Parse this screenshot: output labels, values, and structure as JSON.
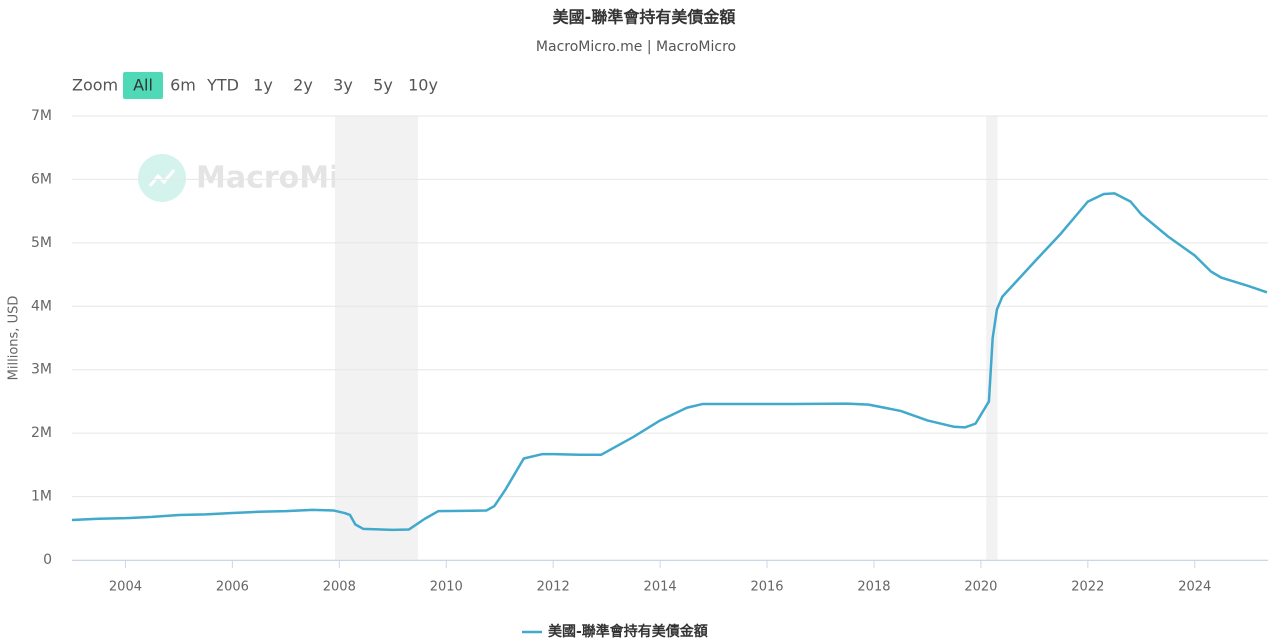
{
  "chart_data": {
    "type": "line",
    "title": "美國-聯準會持有美債金額",
    "subtitle": "MacroMicro.me | MacroMicro",
    "watermark": "MacroMicro",
    "range_selector": {
      "label": "Zoom",
      "buttons": [
        "All",
        "6m",
        "YTD",
        "1y",
        "2y",
        "3y",
        "5y",
        "10y"
      ]
    },
    "y_label": "Millions, USD",
    "x": [
      2003.0,
      2003.5,
      2004.0,
      2004.5,
      2005.0,
      2005.5,
      2006.0,
      2006.5,
      2007.0,
      2007.5,
      2007.9,
      2008.1,
      2008.2,
      2008.3,
      2008.45,
      2009.0,
      2009.3,
      2009.6,
      2009.85,
      2010.5,
      2010.75,
      2010.9,
      2011.1,
      2011.45,
      2011.8,
      2012.0,
      2012.5,
      2012.9,
      2013.5,
      2014.0,
      2014.5,
      2014.8,
      2015.5,
      2016.5,
      2017.5,
      2017.9,
      2018.5,
      2019.0,
      2019.5,
      2019.7,
      2019.9,
      2020.15,
      2020.22,
      2020.3,
      2020.4,
      2021.0,
      2021.5,
      2022.0,
      2022.3,
      2022.5,
      2022.8,
      2023.0,
      2023.5,
      2024.0,
      2024.3,
      2024.5,
      2025.0,
      2025.35
    ],
    "series": [
      {
        "name": "美國-聯準會持有美債金額",
        "color": "#40a9cc",
        "values": [
          630000,
          650000,
          660000,
          680000,
          710000,
          720000,
          740000,
          760000,
          770000,
          790000,
          780000,
          740000,
          710000,
          560000,
          490000,
          475000,
          480000,
          650000,
          770000,
          777000,
          780000,
          850000,
          1100000,
          1600000,
          1670000,
          1670000,
          1660000,
          1660000,
          1940000,
          2200000,
          2400000,
          2460000,
          2460000,
          2460000,
          2465000,
          2450000,
          2350000,
          2200000,
          2100000,
          2090000,
          2150000,
          2500000,
          3500000,
          3950000,
          4150000,
          4700000,
          5150000,
          5650000,
          5770000,
          5780000,
          5650000,
          5450000,
          5100000,
          4800000,
          4550000,
          4450000,
          4320000,
          4220000
        ]
      }
    ],
    "bands": [
      [
        2007.92,
        2009.47
      ],
      [
        2020.1,
        2020.31
      ]
    ],
    "xlim": [
      2003.0,
      2025.37
    ],
    "xticks": [
      2004,
      2006,
      2008,
      2010,
      2012,
      2014,
      2016,
      2018,
      2020,
      2022,
      2024
    ],
    "ylim": [
      0,
      7000000
    ],
    "yticks": [
      0,
      {
        "value": 1000000,
        "label": "1M"
      },
      {
        "value": 2000000,
        "label": "2M"
      },
      {
        "value": 3000000,
        "label": "3M"
      },
      {
        "value": 4000000,
        "label": "4M"
      },
      {
        "value": 5000000,
        "label": "5M"
      },
      {
        "value": 6000000,
        "label": "6M"
      },
      {
        "value": 7000000,
        "label": "7M"
      }
    ],
    "grid": true
  }
}
